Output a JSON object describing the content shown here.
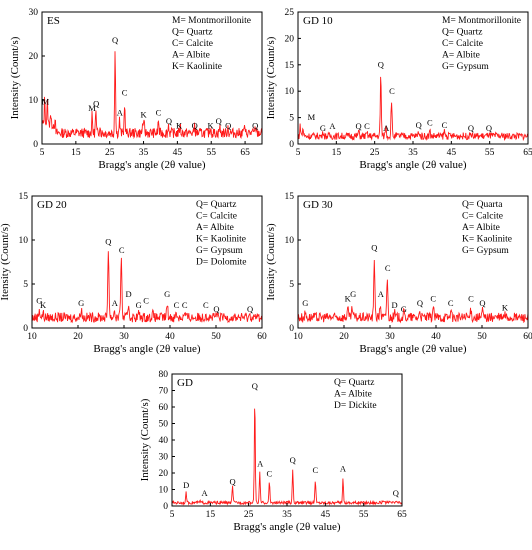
{
  "chart_data": [
    {
      "type": "line",
      "title": "ES",
      "xlabel": "Bragg's angle (2θ value)",
      "ylabel": "Intensity (Count/s)",
      "xlim": [
        5,
        70
      ],
      "ylim": [
        0,
        30
      ],
      "xticks": [
        5,
        15,
        25,
        35,
        45,
        55,
        65
      ],
      "yticks": [
        0,
        10,
        20,
        30
      ],
      "legend": [
        "M= Montmorillonite",
        "Q= Quartz",
        "C= Calcite",
        "A= Albite",
        "K= Kaolinite"
      ],
      "baseline": 2.5,
      "peaks": [
        [
          5.8,
          6
        ],
        [
          6.6,
          5
        ],
        [
          7.5,
          2.5
        ],
        [
          19.8,
          4
        ],
        [
          20.9,
          5
        ],
        [
          22.1,
          2
        ],
        [
          26.6,
          20
        ],
        [
          27.9,
          3
        ],
        [
          29.4,
          7
        ],
        [
          34.8,
          2.5
        ],
        [
          35.2,
          2
        ],
        [
          39.4,
          3
        ],
        [
          42.4,
          2
        ],
        [
          45.8,
          2
        ],
        [
          50.1,
          2
        ],
        [
          54.8,
          1.5
        ],
        [
          57.5,
          1.5
        ],
        [
          59.9,
          1.5
        ],
        [
          64.7,
          1.5
        ],
        [
          68.1,
          1.5
        ]
      ],
      "labels": [
        {
          "t": "M",
          "x": 6,
          "y": 9
        },
        {
          "t": "M",
          "x": 19.8,
          "y": 7.5
        },
        {
          "t": "Q",
          "x": 21,
          "y": 8.5
        },
        {
          "t": "Q",
          "x": 26.6,
          "y": 23
        },
        {
          "t": "A",
          "x": 28,
          "y": 6.5
        },
        {
          "t": "C",
          "x": 29.4,
          "y": 11
        },
        {
          "t": "K",
          "x": 35,
          "y": 6
        },
        {
          "t": "C",
          "x": 39.4,
          "y": 6.5
        },
        {
          "t": "Q",
          "x": 42.5,
          "y": 4.5
        },
        {
          "t": "K",
          "x": 45.5,
          "y": 3.5
        },
        {
          "t": "Q",
          "x": 50.1,
          "y": 3.5
        },
        {
          "t": "K",
          "x": 54.8,
          "y": 3.5
        },
        {
          "t": "Q",
          "x": 57.2,
          "y": 4.5
        },
        {
          "t": "Q",
          "x": 60,
          "y": 3.5
        },
        {
          "t": "Q",
          "x": 68,
          "y": 3.5
        }
      ]
    },
    {
      "type": "line",
      "title": "GD 10",
      "xlabel": "Bragg's angle (2θ value)",
      "ylabel": "Intensity (Count/s)",
      "xlim": [
        5,
        65
      ],
      "ylim": [
        0,
        25
      ],
      "xticks": [
        5,
        15,
        25,
        35,
        45,
        55,
        65
      ],
      "yticks": [
        0,
        5,
        10,
        15,
        20,
        25
      ],
      "legend": [
        "M= Montmorillonite",
        "Q= Quartz",
        "C= Calcite",
        "A= Albite",
        "G= Gypsum"
      ],
      "baseline": 1.5,
      "peaks": [
        [
          5.6,
          2
        ],
        [
          6.3,
          1.5
        ],
        [
          11.6,
          1
        ],
        [
          20.8,
          1
        ],
        [
          23,
          0.5
        ],
        [
          26.6,
          12
        ],
        [
          27.9,
          2
        ],
        [
          29.4,
          7
        ],
        [
          36.5,
          1
        ],
        [
          39.4,
          1
        ],
        [
          43.2,
          1
        ],
        [
          50.1,
          0.8
        ],
        [
          54.8,
          0.5
        ]
      ],
      "labels": [
        {
          "t": "M",
          "x": 8.5,
          "y": 4.5
        },
        {
          "t": "G",
          "x": 11.5,
          "y": 2.5
        },
        {
          "t": "A",
          "x": 14,
          "y": 2.8
        },
        {
          "t": "Q",
          "x": 20.8,
          "y": 2.8
        },
        {
          "t": "C",
          "x": 23,
          "y": 2.8
        },
        {
          "t": "Q",
          "x": 26.6,
          "y": 14.5
        },
        {
          "t": "A",
          "x": 28,
          "y": 2.5
        },
        {
          "t": "C",
          "x": 29.5,
          "y": 9.5
        },
        {
          "t": "Q",
          "x": 36.5,
          "y": 3
        },
        {
          "t": "C",
          "x": 39.4,
          "y": 3.5
        },
        {
          "t": "C",
          "x": 43.2,
          "y": 3
        },
        {
          "t": "Q",
          "x": 50.1,
          "y": 2.5
        },
        {
          "t": "Q",
          "x": 54.8,
          "y": 2.5
        }
      ]
    },
    {
      "type": "line",
      "title": "GD 20",
      "xlabel": "Bragg's angle (2θ value)",
      "ylabel": "Itensity (Count/s)",
      "xlim": [
        10,
        60
      ],
      "ylim": [
        0,
        15
      ],
      "xticks": [
        10,
        20,
        30,
        40,
        50,
        60
      ],
      "yticks": [
        0,
        5,
        10,
        15
      ],
      "legend": [
        "Q= Quartz",
        "C= Calcite",
        "A= Albite",
        "K= Kaolinite",
        "G= Gypsum",
        "D= Dolomite"
      ],
      "baseline": 1.2,
      "peaks": [
        [
          11.6,
          1
        ],
        [
          12.4,
          0.5
        ],
        [
          20.7,
          1
        ],
        [
          26.6,
          8
        ],
        [
          27.9,
          0.8
        ],
        [
          29.4,
          7
        ],
        [
          31,
          1.5
        ],
        [
          33.2,
          0.5
        ],
        [
          36.2,
          0.5
        ],
        [
          39.4,
          1.5
        ],
        [
          41.4,
          0.5
        ],
        [
          43.2,
          0.5
        ],
        [
          47.8,
          0.5
        ],
        [
          50.1,
          0.4
        ],
        [
          57.4,
          0.3
        ]
      ],
      "labels": [
        {
          "t": "G",
          "x": 11.6,
          "y": 2.8
        },
        {
          "t": "K",
          "x": 12.4,
          "y": 2.3
        },
        {
          "t": "G",
          "x": 20.7,
          "y": 2.5
        },
        {
          "t": "Q",
          "x": 26.6,
          "y": 9.5
        },
        {
          "t": "A",
          "x": 28,
          "y": 2.5
        },
        {
          "t": "C",
          "x": 29.5,
          "y": 8.5
        },
        {
          "t": "D",
          "x": 31,
          "y": 3.5
        },
        {
          "t": "G",
          "x": 33.2,
          "y": 2.3
        },
        {
          "t": "C",
          "x": 34.8,
          "y": 2.8
        },
        {
          "t": "G",
          "x": 39.4,
          "y": 3.5
        },
        {
          "t": "C",
          "x": 41.4,
          "y": 2.3
        },
        {
          "t": "C",
          "x": 43.2,
          "y": 2.3
        },
        {
          "t": "C",
          "x": 47.8,
          "y": 2.3
        },
        {
          "t": "Q",
          "x": 50.1,
          "y": 1.8
        },
        {
          "t": "Q",
          "x": 57.4,
          "y": 1.8
        }
      ]
    },
    {
      "type": "line",
      "title": "GD 30",
      "xlabel": "Bragg's angle (2θ value)",
      "ylabel": "Itensity (Count/s)",
      "xlim": [
        10,
        60
      ],
      "ylim": [
        0,
        15
      ],
      "xticks": [
        10,
        20,
        30,
        40,
        50,
        60
      ],
      "yticks": [
        0,
        5,
        10,
        15
      ],
      "legend": [
        "Q= Quarta",
        "C= Calcite",
        "A= Albite",
        "K= Kaolinite",
        "G= Gypsum"
      ],
      "baseline": 1.2,
      "peaks": [
        [
          11.6,
          0.5
        ],
        [
          20.8,
          1
        ],
        [
          21.8,
          1
        ],
        [
          26.6,
          6.5
        ],
        [
          27.9,
          1.5
        ],
        [
          29.4,
          4.5
        ],
        [
          31,
          0.5
        ],
        [
          33,
          0.5
        ],
        [
          36.5,
          0.8
        ],
        [
          39.4,
          1.2
        ],
        [
          43.2,
          0.8
        ],
        [
          47.6,
          0.8
        ],
        [
          50.1,
          0.8
        ],
        [
          55,
          0.3
        ]
      ],
      "labels": [
        {
          "t": "G",
          "x": 11.6,
          "y": 2.5
        },
        {
          "t": "K",
          "x": 20.8,
          "y": 3
        },
        {
          "t": "G",
          "x": 22,
          "y": 3.5
        },
        {
          "t": "Q",
          "x": 26.6,
          "y": 8.8
        },
        {
          "t": "A",
          "x": 28,
          "y": 3.5
        },
        {
          "t": "C",
          "x": 29.5,
          "y": 6.5
        },
        {
          "t": "D",
          "x": 31,
          "y": 2.3
        },
        {
          "t": "G",
          "x": 33,
          "y": 1.8
        },
        {
          "t": "Q",
          "x": 36.5,
          "y": 2.5
        },
        {
          "t": "C",
          "x": 39.4,
          "y": 3
        },
        {
          "t": "C",
          "x": 43.2,
          "y": 2.5
        },
        {
          "t": "C",
          "x": 47.6,
          "y": 3
        },
        {
          "t": "Q",
          "x": 50.1,
          "y": 2.5
        },
        {
          "t": "K",
          "x": 55,
          "y": 2
        }
      ]
    },
    {
      "type": "line",
      "title": "GD",
      "xlabel": "Bragg's angle (2θ value)",
      "ylabel": "Intensity (Count/s)",
      "xlim": [
        5,
        65
      ],
      "ylim": [
        0,
        80
      ],
      "xticks": [
        5,
        15,
        25,
        35,
        45,
        55,
        65
      ],
      "yticks": [
        0,
        10,
        20,
        30,
        40,
        50,
        60,
        70,
        80
      ],
      "legend": [
        "Q= Quartz",
        "A= Albite",
        "D= Dickite"
      ],
      "baseline": 2,
      "peaks": [
        [
          8.7,
          6
        ],
        [
          12.3,
          1
        ],
        [
          20.8,
          10
        ],
        [
          26.6,
          63
        ],
        [
          27.9,
          18
        ],
        [
          30.4,
          12
        ],
        [
          36.5,
          20
        ],
        [
          42.4,
          14
        ],
        [
          49.6,
          14
        ],
        [
          59.9,
          1
        ],
        [
          63.4,
          1
        ]
      ],
      "labels": [
        {
          "t": "D",
          "x": 8.7,
          "y": 11
        },
        {
          "t": "A",
          "x": 13.5,
          "y": 6
        },
        {
          "t": "Q",
          "x": 20.8,
          "y": 13
        },
        {
          "t": "Q",
          "x": 26.6,
          "y": 71
        },
        {
          "t": "A",
          "x": 28,
          "y": 24
        },
        {
          "t": "C",
          "x": 30.4,
          "y": 18
        },
        {
          "t": "Q",
          "x": 36.5,
          "y": 26
        },
        {
          "t": "C",
          "x": 42.4,
          "y": 20
        },
        {
          "t": "A",
          "x": 49.6,
          "y": 21
        },
        {
          "t": "Q",
          "x": 63.4,
          "y": 6
        }
      ]
    }
  ]
}
